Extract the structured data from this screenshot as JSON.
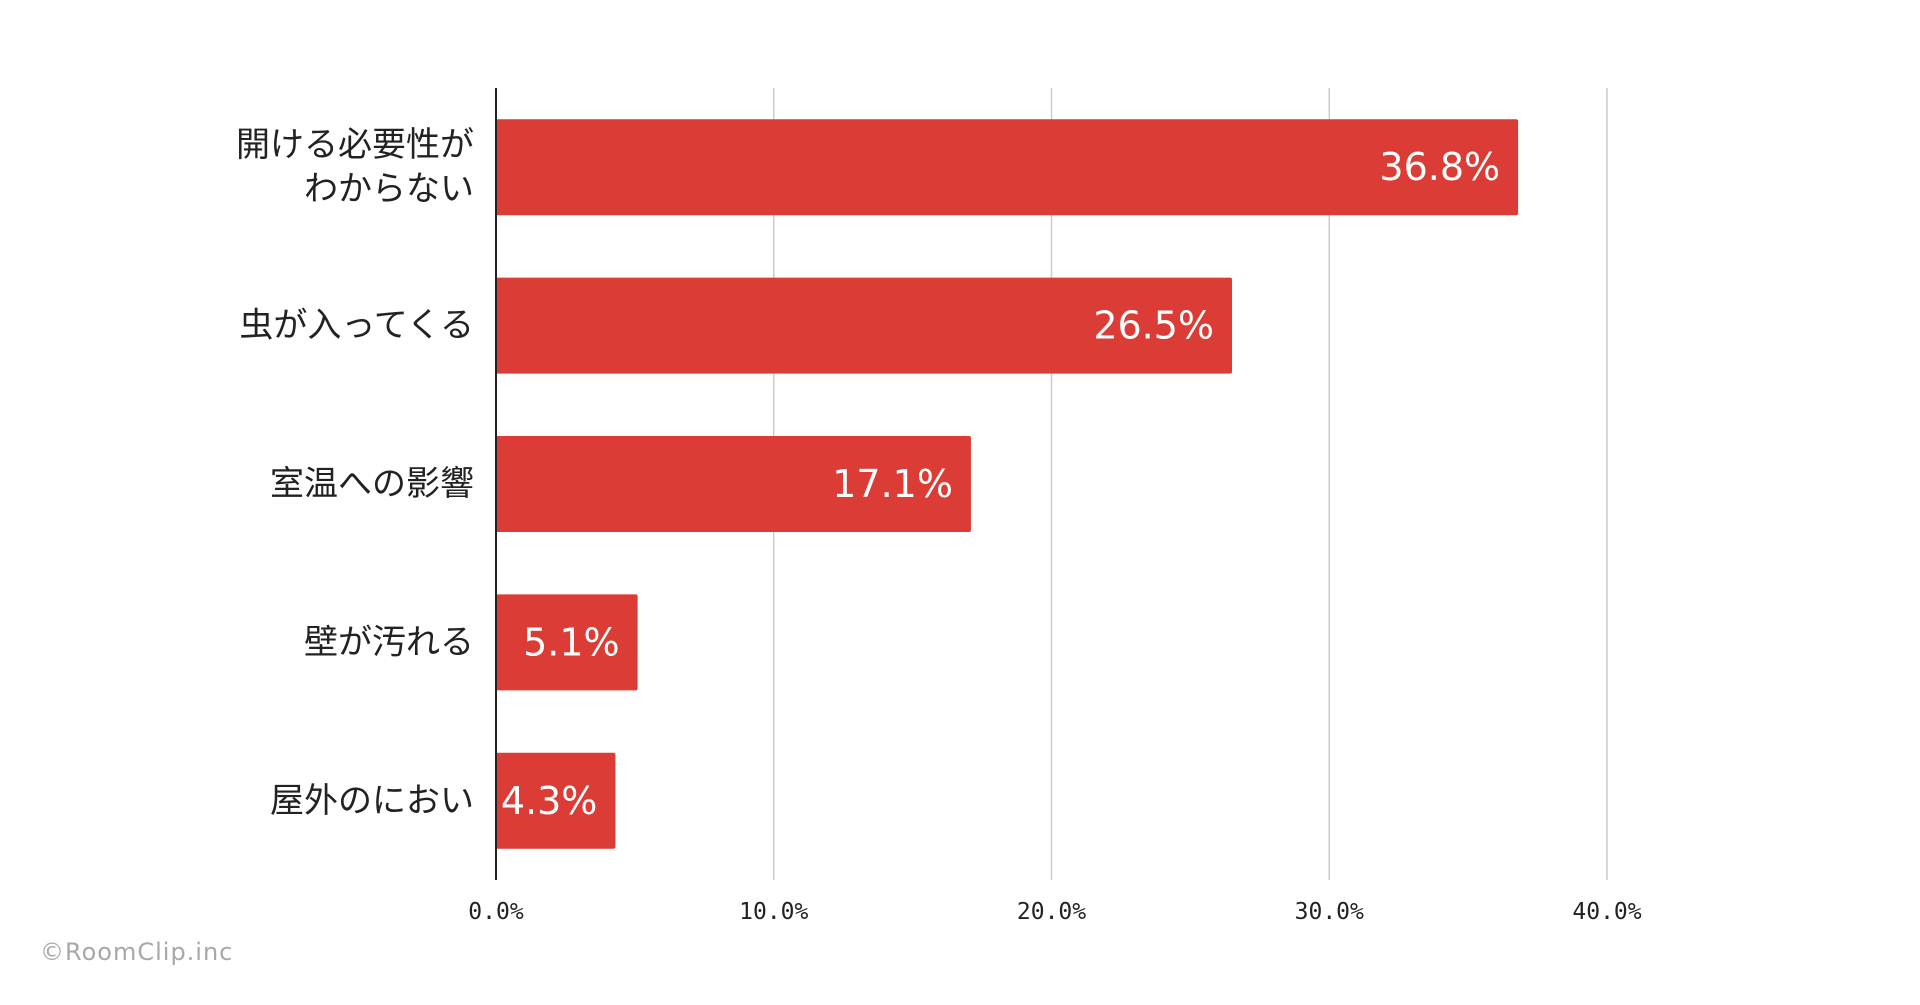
{
  "chart_data": {
    "type": "bar",
    "orientation": "horizontal",
    "categories": [
      [
        "開ける必要性が",
        "わからない"
      ],
      [
        "虫が入ってくる"
      ],
      [
        "室温への影響"
      ],
      [
        "壁が汚れる"
      ],
      [
        "屋外のにおい"
      ]
    ],
    "values": [
      36.8,
      26.5,
      17.1,
      5.1,
      4.3
    ],
    "value_labels": [
      "36.8%",
      "26.5%",
      "17.1%",
      "5.1%",
      "4.3%"
    ],
    "xlim": [
      0,
      40
    ],
    "x_ticks": [
      0,
      10,
      20,
      30,
      40
    ],
    "x_tick_labels": [
      "0.0%",
      "10.0%",
      "20.0%",
      "30.0%",
      "40.0%"
    ],
    "grid": "vertical",
    "bar_color": "#db3c36",
    "title": "",
    "xlabel": "",
    "ylabel": ""
  },
  "footer": {
    "copyright": "©RoomClip.inc"
  }
}
